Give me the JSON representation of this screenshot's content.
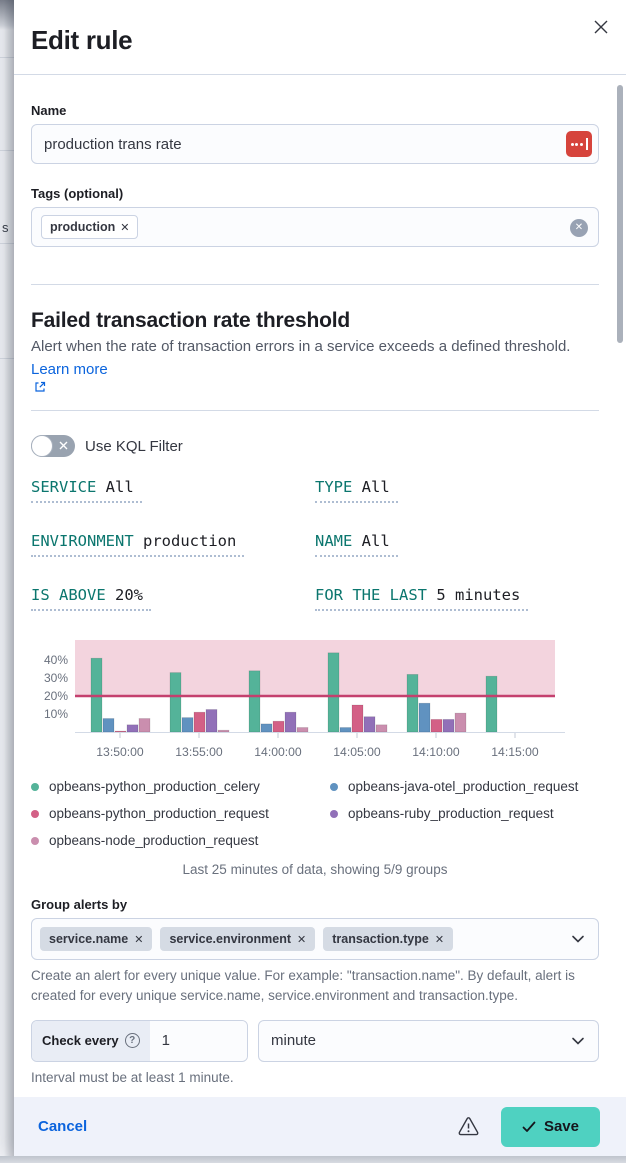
{
  "dialog": {
    "title": "Edit rule"
  },
  "form": {
    "name": {
      "label": "Name",
      "value": "production trans rate"
    },
    "tags": {
      "label": "Tags (optional)",
      "tags": [
        "production"
      ]
    },
    "rule_type": {
      "heading": "Failed transaction rate threshold",
      "description": "Alert when the rate of transaction errors in a service exceeds a defined threshold.",
      "learn_more": "Learn more"
    },
    "kql_toggle": {
      "label": "Use KQL Filter",
      "checked": false
    },
    "expressions": [
      {
        "id": "service",
        "label": "SERVICE",
        "value": "All"
      },
      {
        "id": "type",
        "label": "TYPE",
        "value": "All"
      },
      {
        "id": "environment",
        "label": "ENVIRONMENT",
        "value": "production"
      },
      {
        "id": "name",
        "label": "NAME",
        "value": "All"
      },
      {
        "id": "is-above",
        "label": "IS ABOVE",
        "value": "20%"
      },
      {
        "id": "for-the-last",
        "label": "FOR THE LAST",
        "value": "5 minutes"
      }
    ],
    "chart_caption": "Last 25 minutes of data, showing 5/9 groups",
    "group_by": {
      "label": "Group alerts by",
      "tags": [
        "service.name",
        "service.environment",
        "transaction.type"
      ],
      "help": "Create an alert for every unique value. For example: \"transaction.name\". By default, alert is created for every unique service.name, service.environment and transaction.type."
    },
    "interval": {
      "prepend": "Check every",
      "value": "1",
      "unit": "minute",
      "help": "Interval must be at least 1 minute."
    }
  },
  "chart_data": {
    "type": "bar",
    "x": [
      "13:50:00",
      "13:55:00",
      "14:00:00",
      "14:05:00",
      "14:10:00",
      "14:15:00"
    ],
    "series": [
      {
        "name": "opbeans-python_production_celery",
        "color": "#54B399",
        "values": [
          41,
          33,
          34,
          44,
          32,
          31
        ]
      },
      {
        "name": "opbeans-java-otel_production_request",
        "color": "#6092C0",
        "values": [
          7.5,
          8,
          4.5,
          2.5,
          16,
          0
        ]
      },
      {
        "name": "opbeans-python_production_request",
        "color": "#D36086",
        "values": [
          0.5,
          11,
          6,
          15,
          7,
          0
        ]
      },
      {
        "name": "opbeans-ruby_production_request",
        "color": "#9170B8",
        "values": [
          4,
          12.5,
          11,
          8.5,
          7,
          0
        ]
      },
      {
        "name": "opbeans-node_production_request",
        "color": "#CA8EAE",
        "values": [
          7.5,
          1,
          2.5,
          4,
          10.5,
          0
        ]
      }
    ],
    "legend_columns": [
      [
        0,
        2,
        4
      ],
      [
        1,
        3
      ]
    ],
    "threshold": {
      "value": 20,
      "line_color": "#C4406E",
      "area_color": "rgba(211,96,134,0.27)"
    },
    "y_ticks": [
      10,
      20,
      30,
      40
    ],
    "y_tick_suffix": "%",
    "ylim": [
      0,
      51
    ],
    "grid": false,
    "legend_position": "bottom"
  },
  "icons": {
    "remove": "✕",
    "clear": "✕",
    "question": "?"
  },
  "footer": {
    "cancel": "Cancel",
    "save": "Save"
  },
  "colors": {
    "accent_teal": "#0b766e",
    "save_button": "#4fd1c1",
    "link_blue": "#0b64dd",
    "threshold_line": "#C4406E"
  }
}
